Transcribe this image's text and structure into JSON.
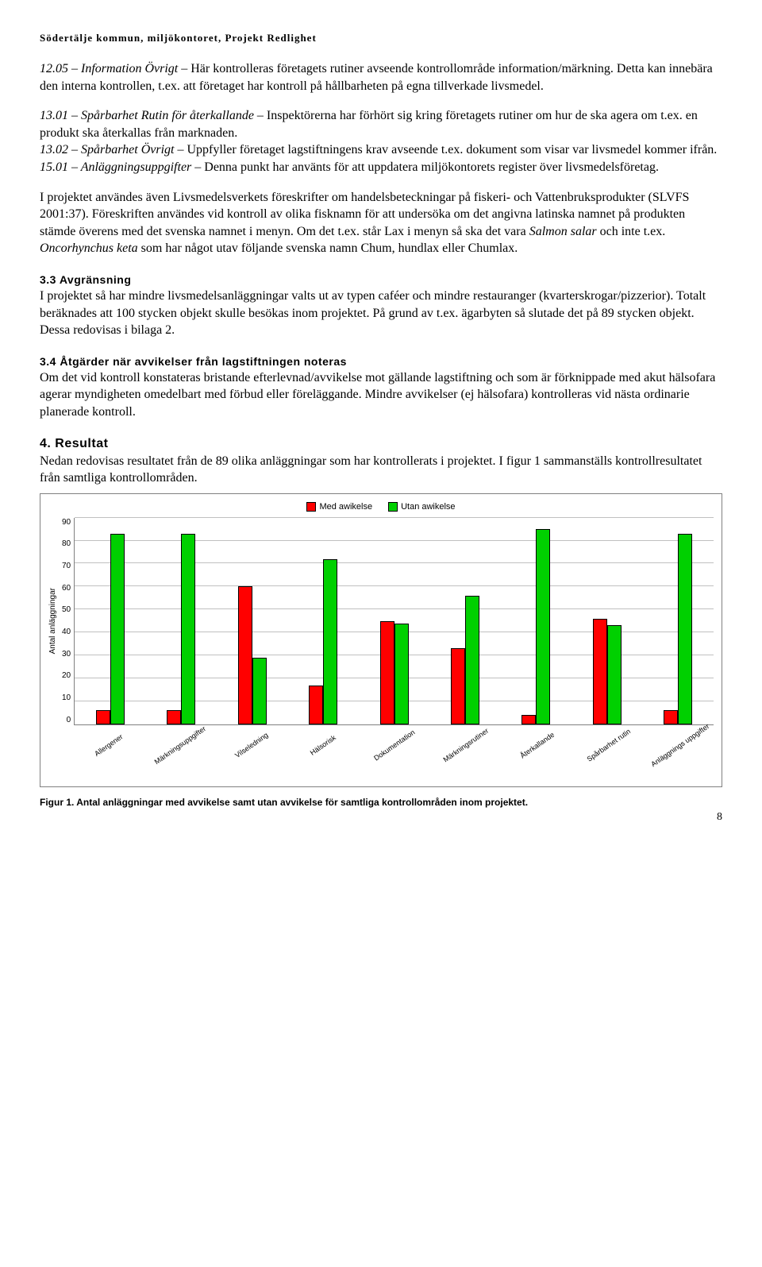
{
  "header": "Södertälje kommun, miljökontoret, Projekt Redlighet",
  "para1": {
    "lead": "12.05 – Information Övrigt – ",
    "rest": "Här kontrolleras företagets rutiner avseende kontrollområde information/märkning. Detta kan innebära den interna kontrollen, t.ex. att företaget har kontroll på hållbarheten på egna tillverkade livsmedel."
  },
  "para2": {
    "lead": "13.01 – Spårbarhet Rutin för återkallande – ",
    "rest": "Inspektörerna har förhört sig kring företagets rutiner om hur de ska agera om t.ex. en produkt ska återkallas från marknaden."
  },
  "para3": {
    "lead": "13.02 – Spårbarhet Övrigt – ",
    "rest": "Uppfyller företaget lagstiftningens krav avseende t.ex. dokument som visar var livsmedel kommer ifrån."
  },
  "para4": {
    "lead": "15.01 – Anläggningsuppgifter – ",
    "rest": "Denna punkt har använts för att uppdatera miljökontorets register över livsmedelsföretag."
  },
  "para5a": "I projektet användes även Livsmedelsverkets föreskrifter om handelsbeteckningar på fiskeri- och Vattenbruksprodukter (SLVFS 2001:37). Föreskriften användes vid kontroll av olika fisknamn för att undersöka om det angivna latinska namnet på produkten stämde överens med det svenska namnet i menyn. Om det t.ex. står Lax i menyn så ska det vara ",
  "para5_italic1": "Salmon salar",
  "para5b": " och inte t.ex. ",
  "para5_italic2": "Oncorhynchus keta",
  "para5c": " som har något utav följande svenska namn Chum, hundlax eller Chumlax.",
  "section33_title": "3.3 Avgränsning",
  "section33_body": "I projektet så har mindre livsmedelsanläggningar valts ut av typen caféer och mindre restauranger (kvarterskrogar/pizzerior). Totalt beräknades att 100 stycken objekt skulle besökas inom projektet. På grund av t.ex. ägarbyten så slutade det på 89 stycken objekt. Dessa redovisas i bilaga 2.",
  "section34_title": "3.4 Åtgärder när avvikelser från lagstiftningen noteras",
  "section34_body": "Om det vid kontroll konstateras bristande efterlevnad/avvikelse mot gällande lagstiftning och som är förknippade med akut hälsofara agerar myndigheten omedelbart med förbud eller föreläggande. Mindre avvikelser (ej hälsofara) kontrolleras vid nästa ordinarie planerade kontroll.",
  "section4_title": "4. Resultat",
  "section4_body": "Nedan redovisas resultatet från de 89 olika anläggningar som har kontrollerats i projektet. I figur 1 sammanställs kontrollresultatet från samtliga kontrollområden.",
  "chart": {
    "legend": {
      "series1": "Med awikelse",
      "series2": "Utan awikelse"
    },
    "color_med": "#ff0000",
    "color_utan": "#00d000",
    "border_color": "#000000",
    "ymax": 90,
    "yticks": [
      90,
      80,
      70,
      60,
      50,
      40,
      30,
      20,
      10,
      0
    ],
    "y_label": "Antal anläggningar",
    "categories": [
      "Allergener",
      "Märkningsuppgifter",
      "Vilseledning",
      "Hälsorisk",
      "Dokumentation",
      "Märkningsrutiner",
      "Återkallande",
      "Spårbarhet rutin",
      "Anläggnings uppgifter"
    ],
    "med": [
      6,
      6,
      60,
      17,
      45,
      33,
      4,
      46,
      6
    ],
    "utan": [
      83,
      83,
      29,
      72,
      44,
      56,
      85,
      43,
      83
    ]
  },
  "figure_caption": "Figur 1. Antal anläggningar med avvikelse samt utan avvikelse för samtliga kontrollområden inom projektet.",
  "page_number": "8"
}
